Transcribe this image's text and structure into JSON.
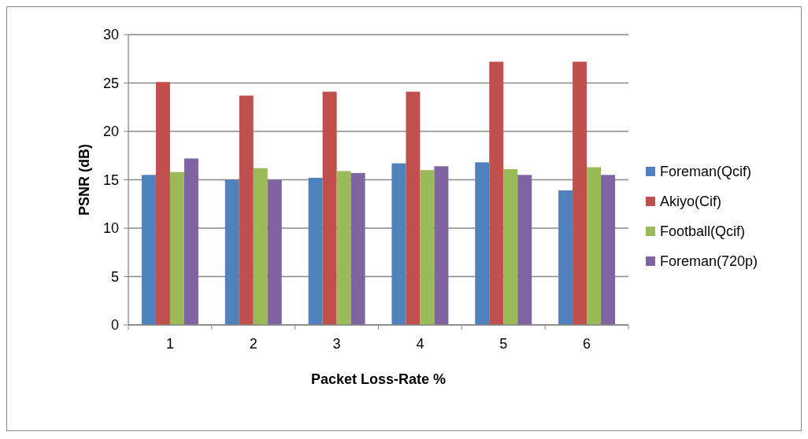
{
  "chart_data": {
    "type": "bar",
    "xlabel": "Packet Loss-Rate %",
    "ylabel": "PSNR (dB)",
    "categories": [
      "1",
      "2",
      "3",
      "4",
      "5",
      "6"
    ],
    "series": [
      {
        "name": "Foreman(Qcif)",
        "color": "#4f81bd",
        "values": [
          15.5,
          15.0,
          15.2,
          16.7,
          16.8,
          13.9
        ]
      },
      {
        "name": "Akiyo(Cif)",
        "color": "#c0504d",
        "values": [
          25.1,
          23.7,
          24.1,
          24.1,
          27.2,
          27.2
        ]
      },
      {
        "name": "Football(Qcif)",
        "color": "#9bbb59",
        "values": [
          15.8,
          16.2,
          15.9,
          16.0,
          16.1,
          16.3
        ]
      },
      {
        "name": "Foreman(720p)",
        "color": "#8064a2",
        "values": [
          17.2,
          15.0,
          15.7,
          16.4,
          15.5,
          15.5
        ]
      }
    ],
    "ylim": [
      0,
      30
    ],
    "yticks": [
      0,
      5,
      10,
      15,
      20,
      25,
      30
    ],
    "grid": "y",
    "legend": "right"
  }
}
